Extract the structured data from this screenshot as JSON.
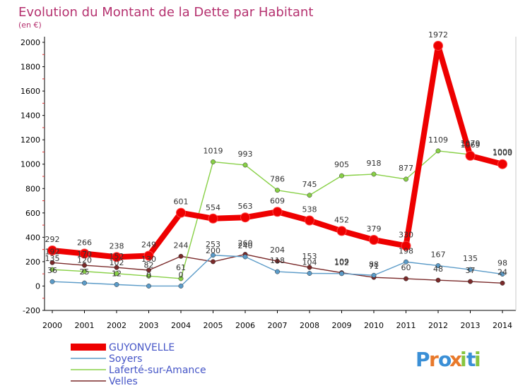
{
  "chart_data": {
    "type": "line",
    "title": "Evolution du Montant de la Dette par Habitant",
    "subtitle": "(en €)",
    "x": [
      "2000",
      "2001",
      "2002",
      "2003",
      "2004",
      "2005",
      "2006",
      "2007",
      "2008",
      "2009",
      "2010",
      "2011",
      "2012",
      "2013",
      "2014"
    ],
    "yticks": [
      -200,
      0,
      200,
      400,
      600,
      800,
      1000,
      1200,
      1400,
      1600,
      1800,
      2000
    ],
    "ylim": [
      -200,
      2000
    ],
    "grid": false,
    "legend_position": "bottom-left",
    "series": [
      {
        "name": "GUYONVELLE",
        "color": "#ee0000",
        "values": [
          292,
          266,
          238,
          249,
          601,
          554,
          563,
          609,
          538,
          452,
          379,
          330,
          1972,
          1069,
          1000
        ],
        "labels": [
          "292",
          "266",
          "238",
          "249",
          "601",
          "554",
          "563",
          "609",
          "538",
          "452",
          "379",
          "330",
          "1972",
          "1069",
          "1000"
        ]
      },
      {
        "name": "Soyers",
        "color": "#5b9bc8",
        "values": [
          36,
          25,
          12,
          0,
          0,
          253,
          240,
          118,
          104,
          102,
          88,
          198,
          167,
          135,
          98
        ],
        "labels": [
          "36",
          "25",
          "12",
          "0",
          "0",
          "253",
          "240",
          "118",
          "104",
          "102",
          "88",
          "198",
          "167",
          "135",
          "98"
        ]
      },
      {
        "name": "Laferté-sur-Amance",
        "color": "#88d046",
        "values": [
          135,
          120,
          102,
          82,
          61,
          1019,
          993,
          786,
          745,
          905,
          918,
          877,
          1109,
          1079,
          1009
        ],
        "labels": [
          "135",
          "120",
          "102",
          "82",
          "61",
          "1019",
          "993",
          "786",
          "745",
          "905",
          "918",
          "877",
          "1109",
          "1079",
          "1009"
        ]
      },
      {
        "name": "Velles",
        "color": "#7a2a2a",
        "values": [
          192,
          170,
          152,
          130,
          244,
          200,
          260,
          204,
          153,
          109,
          71,
          60,
          48,
          37,
          24
        ],
        "labels": [
          "192",
          "170",
          "152",
          "130",
          "244",
          "200",
          "260",
          "204",
          "153",
          "109",
          "71",
          "60",
          "48",
          "37",
          "24"
        ]
      }
    ]
  },
  "brand": {
    "letters": [
      "P",
      "r",
      "o",
      "x",
      "i",
      "t",
      "i"
    ],
    "colors": [
      "#3a8fd6",
      "#e8792b",
      "#3a8fd6",
      "#e8792b",
      "#87c540",
      "#3a8fd6",
      "#87c540"
    ]
  }
}
